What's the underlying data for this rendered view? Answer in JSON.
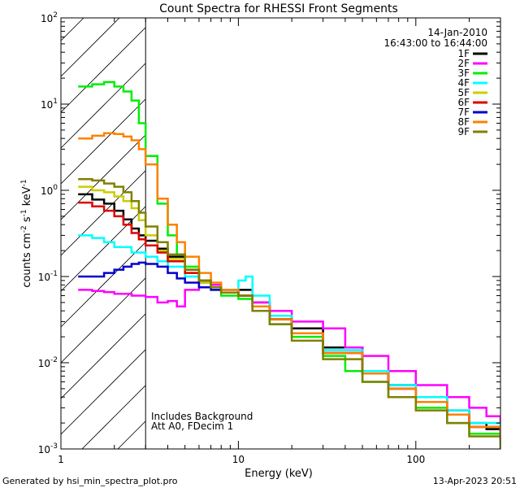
{
  "chart_data": {
    "type": "line",
    "title": "Count Spectra for RHESSI Front Segments",
    "xlabel": "Energy (keV)",
    "ylabel_main": "counts cm",
    "ylabel_exp1": "-2",
    "ylabel_mid": " s",
    "ylabel_exp2": "-1",
    "ylabel_end": " keV",
    "ylabel_exp3": "-1",
    "x_scale": "log",
    "y_scale": "log",
    "xlim": [
      1,
      300
    ],
    "ylim": [
      0.001,
      100
    ],
    "x_ticks": [
      {
        "value": 1,
        "label": "1"
      },
      {
        "value": 10,
        "label": "10"
      },
      {
        "value": 100,
        "label": "100"
      }
    ],
    "y_ticks": [
      {
        "value": 100,
        "mant": "10",
        "exp": "2"
      },
      {
        "value": 10,
        "mant": "10",
        "exp": "1"
      },
      {
        "value": 1,
        "mant": "10",
        "exp": "0"
      },
      {
        "value": 0.1,
        "mant": "10",
        "exp": "-1"
      },
      {
        "value": 0.01,
        "mant": "10",
        "exp": "-2"
      },
      {
        "value": 0.001,
        "mant": "10",
        "exp": "-3"
      }
    ],
    "excluded_region_x": [
      1,
      3
    ],
    "date": "14-Jan-2010",
    "time_range": "16:43:00 to 16:44:00",
    "annotation_line1": "Includes Background",
    "annotation_line2": "Att A0, FDecim 1",
    "series": [
      {
        "name": "1F",
        "color": "#000000",
        "points": [
          [
            1.25,
            0.9
          ],
          [
            1.5,
            0.78
          ],
          [
            1.75,
            0.7
          ],
          [
            2.0,
            0.58
          ],
          [
            2.25,
            0.46
          ],
          [
            2.5,
            0.36
          ],
          [
            2.75,
            0.3
          ],
          [
            3.0,
            0.26
          ],
          [
            3.5,
            0.21
          ],
          [
            4.0,
            0.17
          ],
          [
            5,
            0.12
          ],
          [
            6,
            0.09
          ],
          [
            7,
            0.08
          ],
          [
            8,
            0.07
          ],
          [
            10,
            0.07
          ],
          [
            12,
            0.05
          ],
          [
            15,
            0.035
          ],
          [
            20,
            0.025
          ],
          [
            30,
            0.015
          ],
          [
            50,
            0.008
          ],
          [
            70,
            0.0055
          ],
          [
            100,
            0.004
          ],
          [
            150,
            0.0028
          ],
          [
            200,
            0.002
          ],
          [
            250,
            0.0017
          ],
          [
            300,
            0.0014
          ]
        ]
      },
      {
        "name": "2F",
        "color": "#ff00ff",
        "points": [
          [
            1.25,
            0.07
          ],
          [
            1.5,
            0.068
          ],
          [
            1.75,
            0.066
          ],
          [
            2.0,
            0.063
          ],
          [
            2.5,
            0.06
          ],
          [
            3.0,
            0.058
          ],
          [
            3.5,
            0.05
          ],
          [
            4.0,
            0.052
          ],
          [
            4.5,
            0.045
          ],
          [
            5,
            0.07
          ],
          [
            6,
            0.085
          ],
          [
            7,
            0.08
          ],
          [
            8,
            0.07
          ],
          [
            10,
            0.06
          ],
          [
            12,
            0.05
          ],
          [
            15,
            0.04
          ],
          [
            20,
            0.03
          ],
          [
            25,
            0.03
          ],
          [
            30,
            0.025
          ],
          [
            40,
            0.015
          ],
          [
            50,
            0.012
          ],
          [
            70,
            0.008
          ],
          [
            100,
            0.0055
          ],
          [
            150,
            0.004
          ],
          [
            200,
            0.003
          ],
          [
            250,
            0.0024
          ],
          [
            300,
            0.002
          ]
        ]
      },
      {
        "name": "3F",
        "color": "#00ee00",
        "points": [
          [
            1.25,
            16
          ],
          [
            1.5,
            17
          ],
          [
            1.75,
            18
          ],
          [
            2.0,
            16
          ],
          [
            2.25,
            14
          ],
          [
            2.5,
            11
          ],
          [
            2.75,
            6
          ],
          [
            3.0,
            2.5
          ],
          [
            3.5,
            0.7
          ],
          [
            4.0,
            0.3
          ],
          [
            4.5,
            0.18
          ],
          [
            5,
            0.13
          ],
          [
            6,
            0.09
          ],
          [
            7,
            0.07
          ],
          [
            8,
            0.06
          ],
          [
            10,
            0.055
          ],
          [
            12,
            0.04
          ],
          [
            15,
            0.028
          ],
          [
            20,
            0.02
          ],
          [
            30,
            0.012
          ],
          [
            40,
            0.008
          ],
          [
            50,
            0.006
          ],
          [
            70,
            0.004
          ],
          [
            100,
            0.003
          ],
          [
            150,
            0.002
          ],
          [
            200,
            0.0015
          ],
          [
            300,
            0.0011
          ]
        ]
      },
      {
        "name": "4F",
        "color": "#00ffff",
        "points": [
          [
            1.25,
            0.3
          ],
          [
            1.5,
            0.28
          ],
          [
            1.75,
            0.25
          ],
          [
            2.0,
            0.22
          ],
          [
            2.5,
            0.19
          ],
          [
            3.0,
            0.17
          ],
          [
            3.5,
            0.15
          ],
          [
            4.0,
            0.13
          ],
          [
            5,
            0.1
          ],
          [
            6,
            0.085
          ],
          [
            7,
            0.075
          ],
          [
            8,
            0.07
          ],
          [
            9,
            0.07
          ],
          [
            10,
            0.09
          ],
          [
            11,
            0.1
          ],
          [
            12,
            0.06
          ],
          [
            15,
            0.035
          ],
          [
            20,
            0.022
          ],
          [
            30,
            0.014
          ],
          [
            50,
            0.008
          ],
          [
            70,
            0.0055
          ],
          [
            100,
            0.004
          ],
          [
            150,
            0.0028
          ],
          [
            200,
            0.002
          ],
          [
            300,
            0.0015
          ]
        ]
      },
      {
        "name": "5F",
        "color": "#cccc00",
        "points": [
          [
            1.25,
            1.1
          ],
          [
            1.5,
            1.0
          ],
          [
            1.75,
            0.95
          ],
          [
            2.0,
            0.85
          ],
          [
            2.25,
            0.75
          ],
          [
            2.5,
            0.62
          ],
          [
            2.75,
            0.45
          ],
          [
            3.0,
            0.3
          ],
          [
            3.5,
            0.2
          ],
          [
            4.0,
            0.16
          ],
          [
            5,
            0.11
          ],
          [
            6,
            0.085
          ],
          [
            7,
            0.075
          ],
          [
            8,
            0.065
          ],
          [
            10,
            0.06
          ],
          [
            12,
            0.045
          ],
          [
            15,
            0.032
          ],
          [
            20,
            0.022
          ],
          [
            30,
            0.013
          ],
          [
            50,
            0.0075
          ],
          [
            70,
            0.005
          ],
          [
            100,
            0.0035
          ],
          [
            150,
            0.0025
          ],
          [
            200,
            0.0018
          ],
          [
            300,
            0.0013
          ]
        ]
      },
      {
        "name": "6F",
        "color": "#dd0000",
        "points": [
          [
            1.25,
            0.72
          ],
          [
            1.5,
            0.65
          ],
          [
            1.75,
            0.58
          ],
          [
            2.0,
            0.5
          ],
          [
            2.25,
            0.4
          ],
          [
            2.5,
            0.32
          ],
          [
            2.75,
            0.27
          ],
          [
            3.0,
            0.23
          ],
          [
            3.5,
            0.19
          ],
          [
            4.0,
            0.15
          ],
          [
            5,
            0.11
          ],
          [
            6,
            0.09
          ],
          [
            7,
            0.075
          ],
          [
            8,
            0.065
          ],
          [
            10,
            0.06
          ],
          [
            12,
            0.045
          ],
          [
            15,
            0.032
          ],
          [
            20,
            0.022
          ],
          [
            30,
            0.013
          ],
          [
            50,
            0.0075
          ],
          [
            70,
            0.005
          ],
          [
            100,
            0.0035
          ],
          [
            150,
            0.0025
          ],
          [
            200,
            0.0018
          ],
          [
            300,
            0.0013
          ]
        ]
      },
      {
        "name": "7F",
        "color": "#0000cc",
        "points": [
          [
            1.25,
            0.1
          ],
          [
            1.5,
            0.1
          ],
          [
            1.75,
            0.11
          ],
          [
            2.0,
            0.12
          ],
          [
            2.25,
            0.13
          ],
          [
            2.5,
            0.14
          ],
          [
            2.75,
            0.145
          ],
          [
            3.0,
            0.14
          ],
          [
            3.5,
            0.13
          ],
          [
            4.0,
            0.11
          ],
          [
            4.5,
            0.095
          ],
          [
            5,
            0.085
          ],
          [
            6,
            0.075
          ],
          [
            7,
            0.07
          ],
          [
            8,
            0.065
          ],
          [
            10,
            0.06
          ],
          [
            12,
            0.045
          ],
          [
            15,
            0.032
          ],
          [
            20,
            0.022
          ],
          [
            30,
            0.013
          ],
          [
            50,
            0.0075
          ],
          [
            70,
            0.005
          ],
          [
            100,
            0.0035
          ],
          [
            150,
            0.0025
          ],
          [
            200,
            0.0018
          ],
          [
            300,
            0.0013
          ]
        ]
      },
      {
        "name": "8F",
        "color": "#ff8000",
        "points": [
          [
            1.25,
            4.0
          ],
          [
            1.5,
            4.3
          ],
          [
            1.75,
            4.6
          ],
          [
            2.0,
            4.5
          ],
          [
            2.25,
            4.2
          ],
          [
            2.5,
            3.8
          ],
          [
            2.75,
            3.0
          ],
          [
            3.0,
            2.0
          ],
          [
            3.5,
            0.8
          ],
          [
            4.0,
            0.4
          ],
          [
            4.5,
            0.25
          ],
          [
            5,
            0.17
          ],
          [
            6,
            0.11
          ],
          [
            7,
            0.085
          ],
          [
            8,
            0.07
          ],
          [
            10,
            0.06
          ],
          [
            12,
            0.045
          ],
          [
            15,
            0.032
          ],
          [
            20,
            0.022
          ],
          [
            30,
            0.013
          ],
          [
            50,
            0.0075
          ],
          [
            70,
            0.005
          ],
          [
            100,
            0.0035
          ],
          [
            150,
            0.0025
          ],
          [
            200,
            0.0018
          ],
          [
            300,
            0.0013
          ]
        ]
      },
      {
        "name": "9F",
        "color": "#808000",
        "points": [
          [
            1.25,
            1.35
          ],
          [
            1.5,
            1.3
          ],
          [
            1.75,
            1.2
          ],
          [
            2.0,
            1.1
          ],
          [
            2.25,
            0.95
          ],
          [
            2.5,
            0.75
          ],
          [
            2.75,
            0.55
          ],
          [
            3.0,
            0.38
          ],
          [
            3.5,
            0.25
          ],
          [
            4.0,
            0.18
          ],
          [
            5,
            0.12
          ],
          [
            6,
            0.09
          ],
          [
            7,
            0.075
          ],
          [
            8,
            0.065
          ],
          [
            10,
            0.06
          ],
          [
            12,
            0.04
          ],
          [
            15,
            0.028
          ],
          [
            20,
            0.018
          ],
          [
            30,
            0.011
          ],
          [
            50,
            0.006
          ],
          [
            70,
            0.004
          ],
          [
            100,
            0.0028
          ],
          [
            150,
            0.002
          ],
          [
            200,
            0.0014
          ],
          [
            300,
            0.001
          ]
        ]
      }
    ]
  },
  "footer": {
    "generated_by": "Generated by hsi_min_spectra_plot.pro",
    "timestamp": "13-Apr-2023 20:51"
  }
}
